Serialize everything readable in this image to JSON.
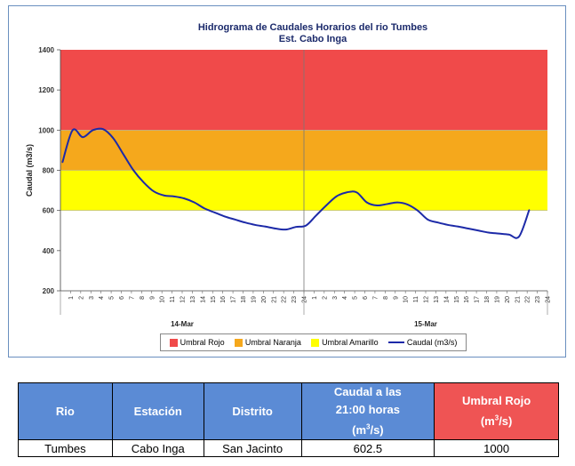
{
  "chart_data": {
    "type": "line",
    "title": "Hidrograma de Caudales Horarios del rio Tumbes",
    "subtitle": "Est. Cabo Inga",
    "ylabel": "Caudal  (m3/s)",
    "ylim": [
      200,
      1400
    ],
    "yticks": [
      200,
      400,
      600,
      800,
      1000,
      1200,
      1400
    ],
    "days": [
      "14-Mar",
      "15-Mar"
    ],
    "hour_ticks": [
      "1",
      "2",
      "3",
      "4",
      "5",
      "6",
      "7",
      "8",
      "9",
      "10",
      "11",
      "12",
      "13",
      "14",
      "15",
      "16",
      "17",
      "18",
      "19",
      "20",
      "21",
      "22",
      "23",
      "24"
    ],
    "bands": [
      {
        "name": "Umbral Rojo",
        "from": 1000,
        "to": 1400,
        "color": "#f04a4a"
      },
      {
        "name": "Umbral Naranja",
        "from": 800,
        "to": 1000,
        "color": "#f5a81c"
      },
      {
        "name": "Umbral Amarillo",
        "from": 600,
        "to": 800,
        "color": "#ffff00"
      }
    ],
    "series": [
      {
        "name": "Caudal (m3/s)",
        "color": "#1d2aa8",
        "values": [
          840,
          1000,
          965,
          1000,
          1005,
          960,
          880,
          800,
          740,
          695,
          675,
          670,
          660,
          640,
          610,
          590,
          570,
          555,
          540,
          528,
          520,
          510,
          505,
          518,
          525,
          575,
          625,
          670,
          690,
          690,
          640,
          625,
          632,
          640,
          630,
          600,
          555,
          540,
          528,
          520,
          510,
          500,
          490,
          485,
          480,
          470,
          602.5
        ]
      }
    ],
    "legend": {
      "position": "bottom"
    }
  },
  "table": {
    "headers": [
      {
        "label": "Rio"
      },
      {
        "label": "Estación"
      },
      {
        "label": "Distrito"
      },
      {
        "label_lines": [
          "Caudal a las",
          "21:00 horas"
        ],
        "unit_base": "(m",
        "unit_sup": "3",
        "unit_tail": "/s)"
      },
      {
        "label": "Umbral Rojo",
        "unit_base": "(m",
        "unit_sup": "3",
        "unit_tail": "/s)"
      }
    ],
    "row": [
      "Tumbes",
      "Cabo Inga",
      "San Jacinto",
      "602.5",
      "1000"
    ]
  }
}
